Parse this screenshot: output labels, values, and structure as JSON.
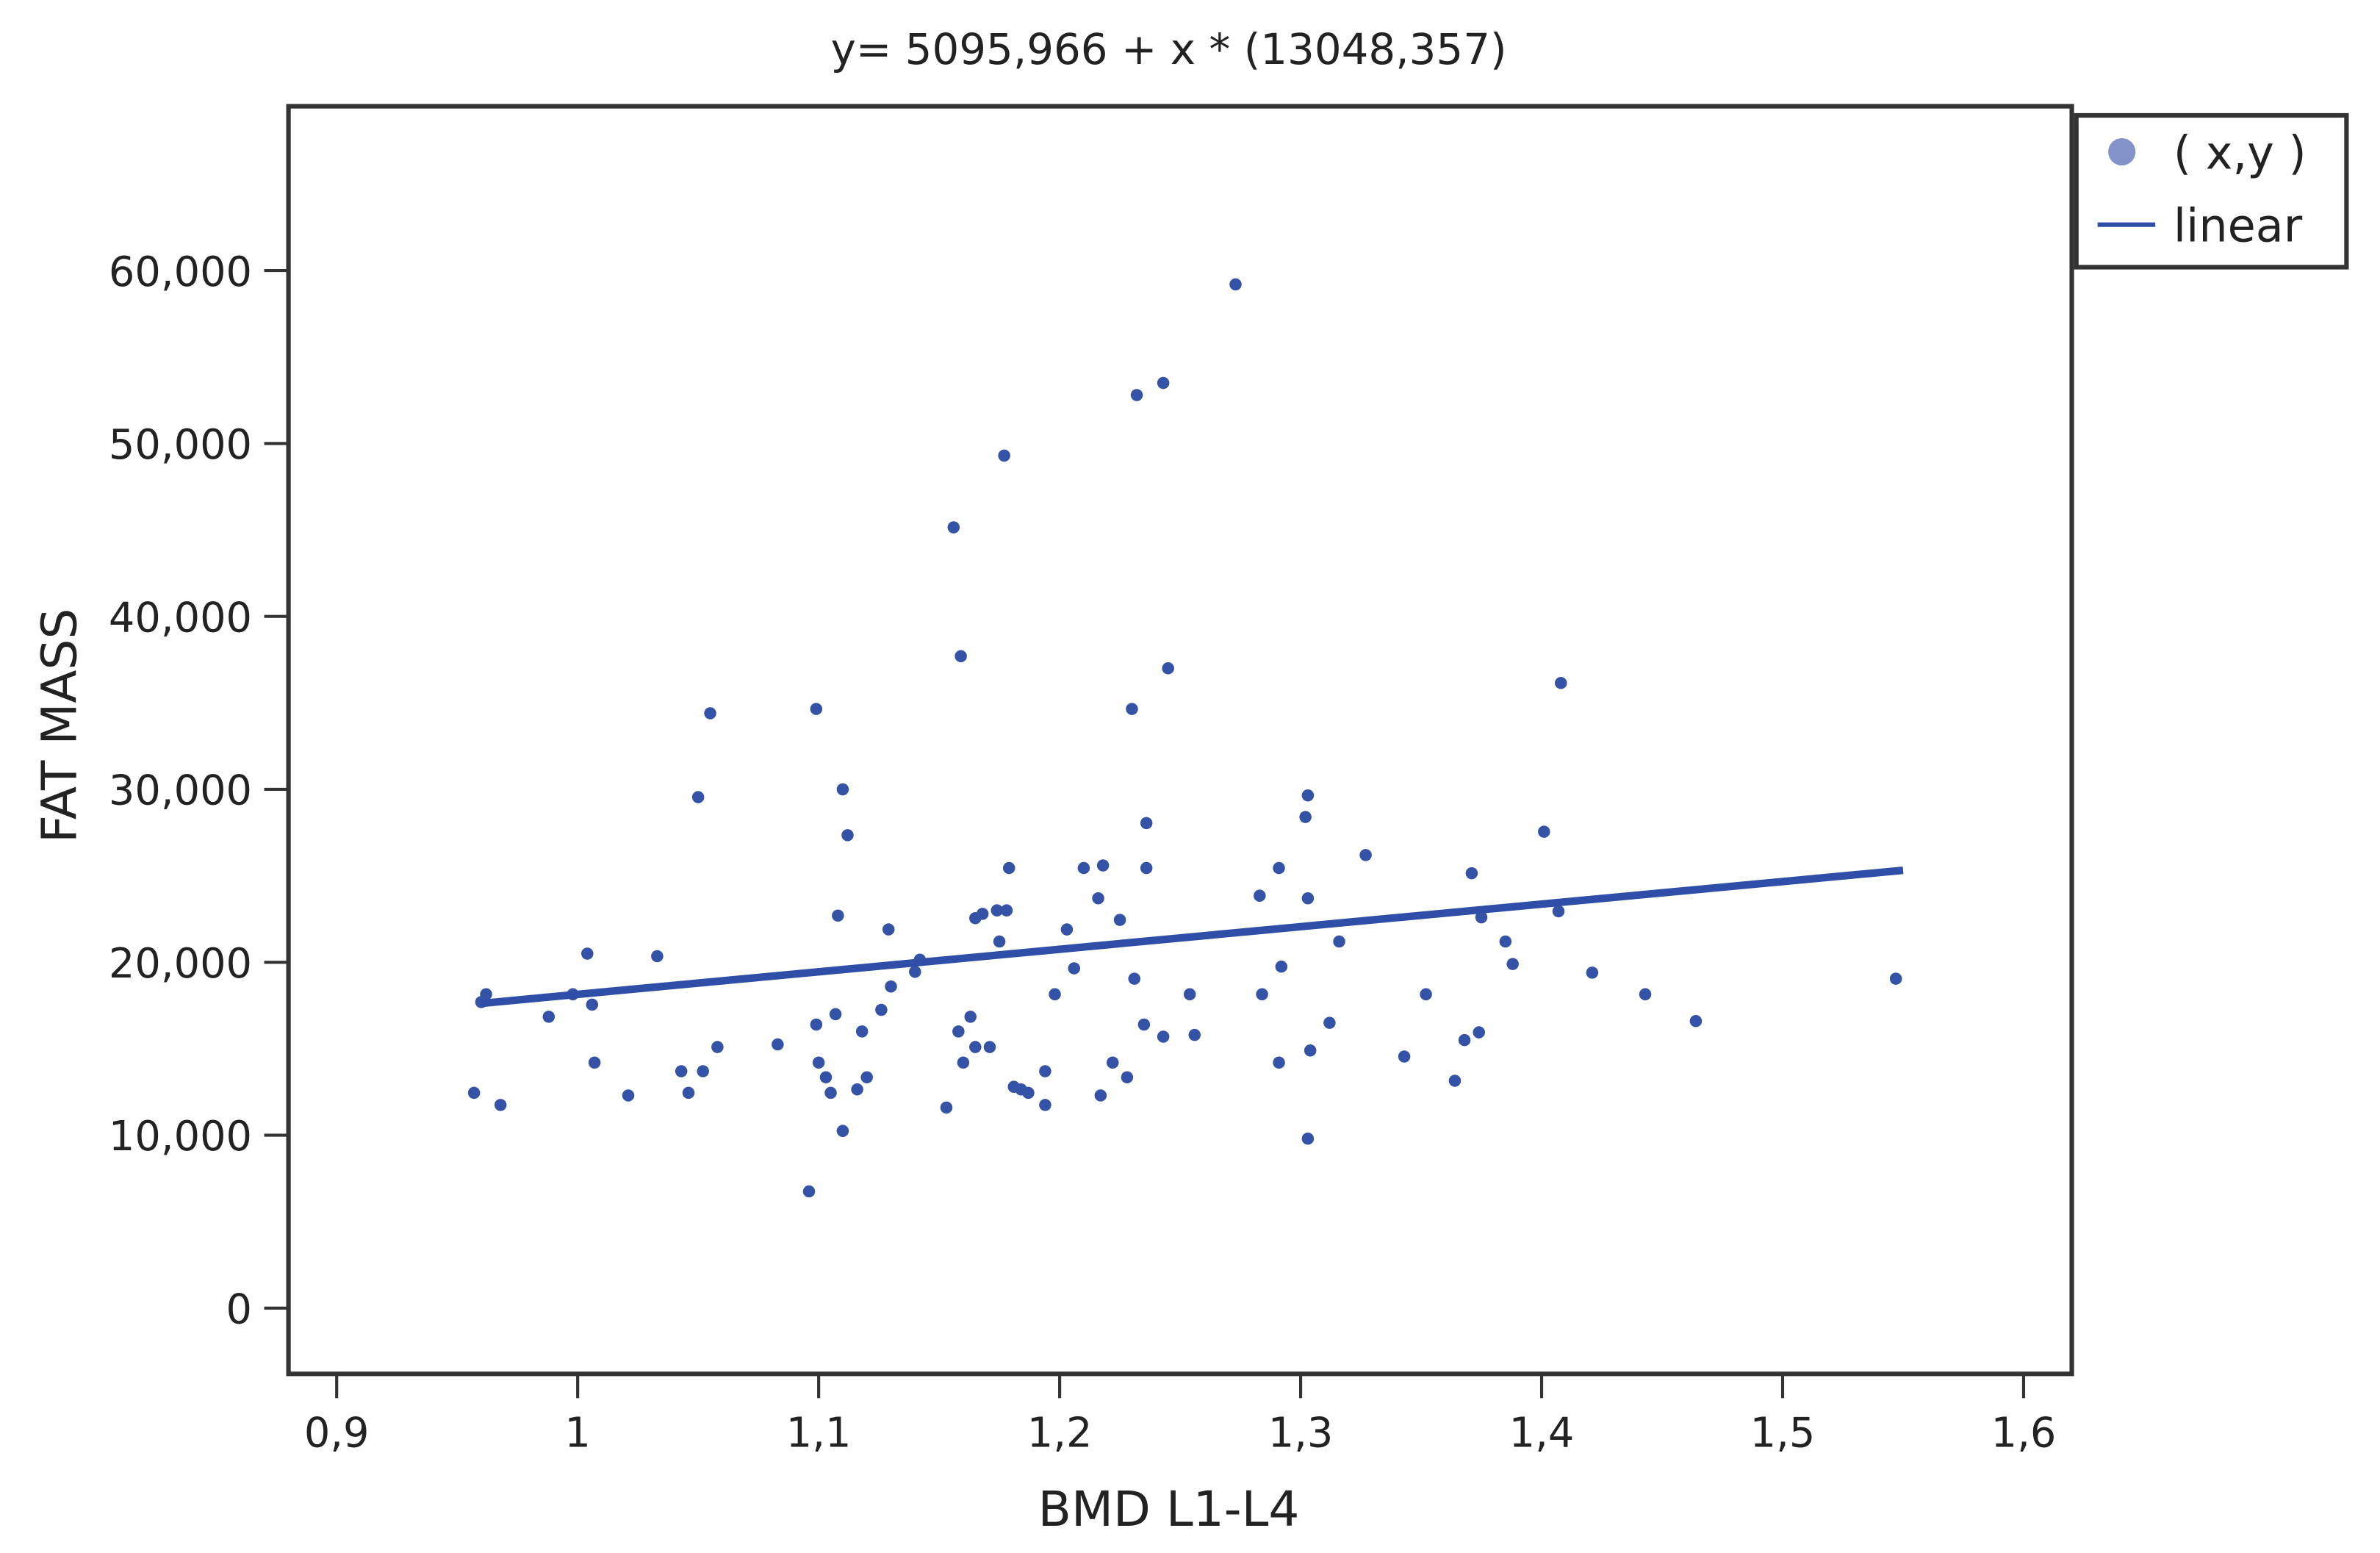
{
  "chart_data": {
    "type": "scatter",
    "title": "y= 5095,966 + x * (13048,357)",
    "x_label": "BMD L1-L4",
    "y_label": "FAT MASS",
    "xlim": [
      0.88,
      1.62
    ],
    "ylim": [
      -3800,
      69500
    ],
    "xticks": [
      {
        "value": 0.9,
        "label": "0,9"
      },
      1,
      {
        "value": 1.1,
        "label": "1,1"
      },
      {
        "value": 1.2,
        "label": "1,2"
      },
      {
        "value": 1.3,
        "label": "1,3"
      },
      {
        "value": 1.4,
        "label": "1,4"
      },
      {
        "value": 1.5,
        "label": "1,5"
      },
      {
        "value": 1.6,
        "label": "1,6"
      }
    ],
    "yticks": [
      0,
      {
        "value": 10000,
        "label": "10,000"
      },
      {
        "value": 20000,
        "label": "20,000"
      },
      {
        "value": 30000,
        "label": "30,000"
      },
      {
        "value": 40000,
        "label": "40,000"
      },
      {
        "value": 50000,
        "label": "50,000"
      },
      {
        "value": 60000,
        "label": "60,000"
      }
    ],
    "legend": "right",
    "series": [
      {
        "name": "( x,y )",
        "color": "#3553a6",
        "marker_color": "#8393c9",
        "x": [
          0.957,
          0.96,
          0.962,
          0.968,
          0.988,
          0.998,
          1.004,
          1.006,
          1.007,
          1.021,
          1.033,
          1.043,
          1.046,
          1.05,
          1.052,
          1.055,
          1.058,
          1.083,
          1.096,
          1.099,
          1.099,
          1.1,
          1.103,
          1.105,
          1.107,
          1.108,
          1.11,
          1.11,
          1.112,
          1.116,
          1.118,
          1.12,
          1.126,
          1.129,
          1.13,
          1.14,
          1.142,
          1.153,
          1.156,
          1.158,
          1.159,
          1.16,
          1.163,
          1.165,
          1.165,
          1.168,
          1.171,
          1.174,
          1.175,
          1.177,
          1.178,
          1.179,
          1.181,
          1.184,
          1.187,
          1.194,
          1.194,
          1.198,
          1.203,
          1.206,
          1.21,
          1.216,
          1.217,
          1.218,
          1.222,
          1.225,
          1.228,
          1.23,
          1.231,
          1.232,
          1.235,
          1.236,
          1.236,
          1.243,
          1.243,
          1.245,
          1.254,
          1.256,
          1.273,
          1.283,
          1.284,
          1.291,
          1.291,
          1.292,
          1.302,
          1.303,
          1.303,
          1.303,
          1.304,
          1.312,
          1.316,
          1.327,
          1.343,
          1.352,
          1.364,
          1.368,
          1.371,
          1.374,
          1.375,
          1.385,
          1.388,
          1.401,
          1.407,
          1.408,
          1.421,
          1.443,
          1.464,
          1.547
        ],
        "values": [
          12450,
          17700,
          18150,
          11750,
          16850,
          18150,
          20500,
          17550,
          14200,
          12300,
          20350,
          13700,
          12450,
          29550,
          13700,
          34400,
          15100,
          15250,
          6750,
          34650,
          16400,
          14200,
          13350,
          12450,
          17000,
          22700,
          10250,
          30000,
          27350,
          12650,
          16000,
          13350,
          17250,
          21900,
          18600,
          19450,
          20150,
          11600,
          45150,
          16000,
          37700,
          14200,
          16850,
          15100,
          22550,
          22800,
          15100,
          23000,
          21200,
          49300,
          23000,
          25450,
          12800,
          12650,
          12450,
          13700,
          11750,
          18150,
          21900,
          19650,
          25450,
          23700,
          12300,
          25600,
          14200,
          22450,
          13350,
          34650,
          19050,
          52800,
          16400,
          28050,
          25450,
          15700,
          53500,
          37000,
          18150,
          15800,
          59200,
          23850,
          18150,
          25450,
          14200,
          19750,
          28400,
          29650,
          9800,
          23700,
          14900,
          16500,
          21200,
          26200,
          14550,
          18150,
          13150,
          15500,
          25150,
          15950,
          22600,
          21200,
          19900,
          27550,
          22950,
          36150,
          19400,
          18150,
          16600,
          19050
        ]
      },
      {
        "name": "linear",
        "type": "line",
        "color": "#2f4ea8",
        "x": [
          0.96,
          1.55
        ],
        "values": [
          17622,
          25321
        ]
      }
    ]
  }
}
